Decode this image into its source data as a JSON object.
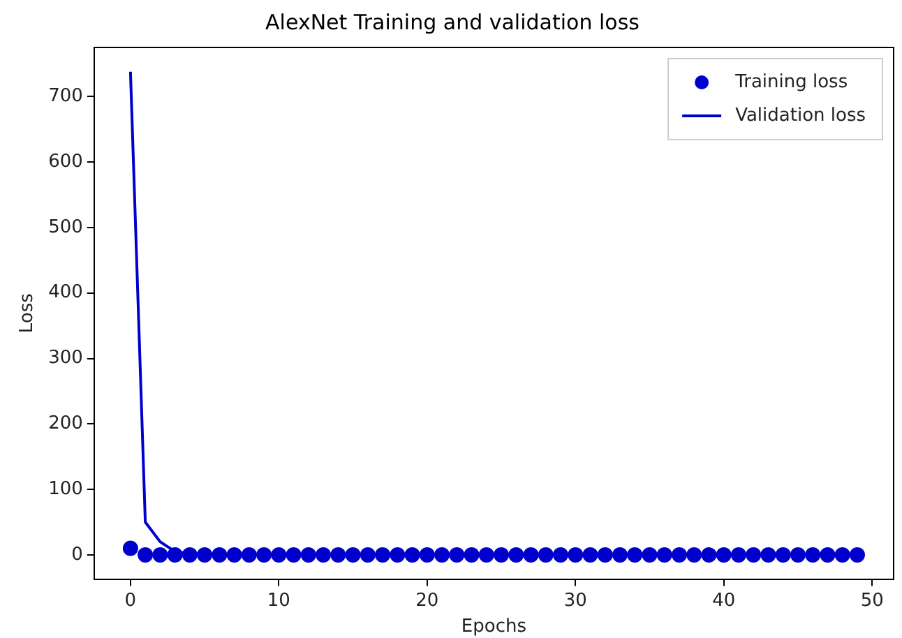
{
  "chart_data": {
    "type": "line",
    "title": "AlexNet Training and validation loss",
    "xlabel": "Epochs",
    "ylabel": "Loss",
    "x": [
      0,
      1,
      2,
      3,
      4,
      5,
      6,
      7,
      8,
      9,
      10,
      11,
      12,
      13,
      14,
      15,
      16,
      17,
      18,
      19,
      20,
      21,
      22,
      23,
      24,
      25,
      26,
      27,
      28,
      29,
      30,
      31,
      32,
      33,
      34,
      35,
      36,
      37,
      38,
      39,
      40,
      41,
      42,
      43,
      44,
      45,
      46,
      47,
      48,
      49
    ],
    "series": [
      {
        "name": "Training loss",
        "type": "scatter",
        "color": "#0000cc",
        "values": [
          10,
          0,
          0,
          0,
          0,
          0,
          0,
          0,
          0,
          0,
          0,
          0,
          0,
          0,
          0,
          0,
          0,
          0,
          0,
          0,
          0,
          0,
          0,
          0,
          0,
          0,
          0,
          0,
          0,
          0,
          0,
          0,
          0,
          0,
          0,
          0,
          0,
          0,
          0,
          0,
          0,
          0,
          0,
          0,
          0,
          0,
          0,
          0,
          0,
          0
        ]
      },
      {
        "name": "Validation loss",
        "type": "line",
        "color": "#0000cc",
        "values": [
          738,
          50,
          20,
          5,
          2,
          1,
          1,
          1,
          1,
          1,
          1,
          1,
          1,
          1,
          1,
          1,
          1,
          1,
          1,
          1,
          1,
          1,
          1,
          1,
          1,
          1,
          1,
          1,
          1,
          1,
          1,
          1,
          1,
          1,
          1,
          1,
          1,
          1,
          1,
          1,
          1,
          1,
          1,
          1,
          1,
          1,
          1,
          1,
          1,
          1
        ]
      }
    ],
    "xlim": [
      -2.45,
      51.45
    ],
    "xticks": [
      0,
      10,
      20,
      30,
      40,
      50
    ],
    "ylim": [
      -37,
      775
    ],
    "yticks": [
      0,
      100,
      200,
      300,
      400,
      500,
      600,
      700
    ],
    "grid": false,
    "legend": "top right"
  }
}
